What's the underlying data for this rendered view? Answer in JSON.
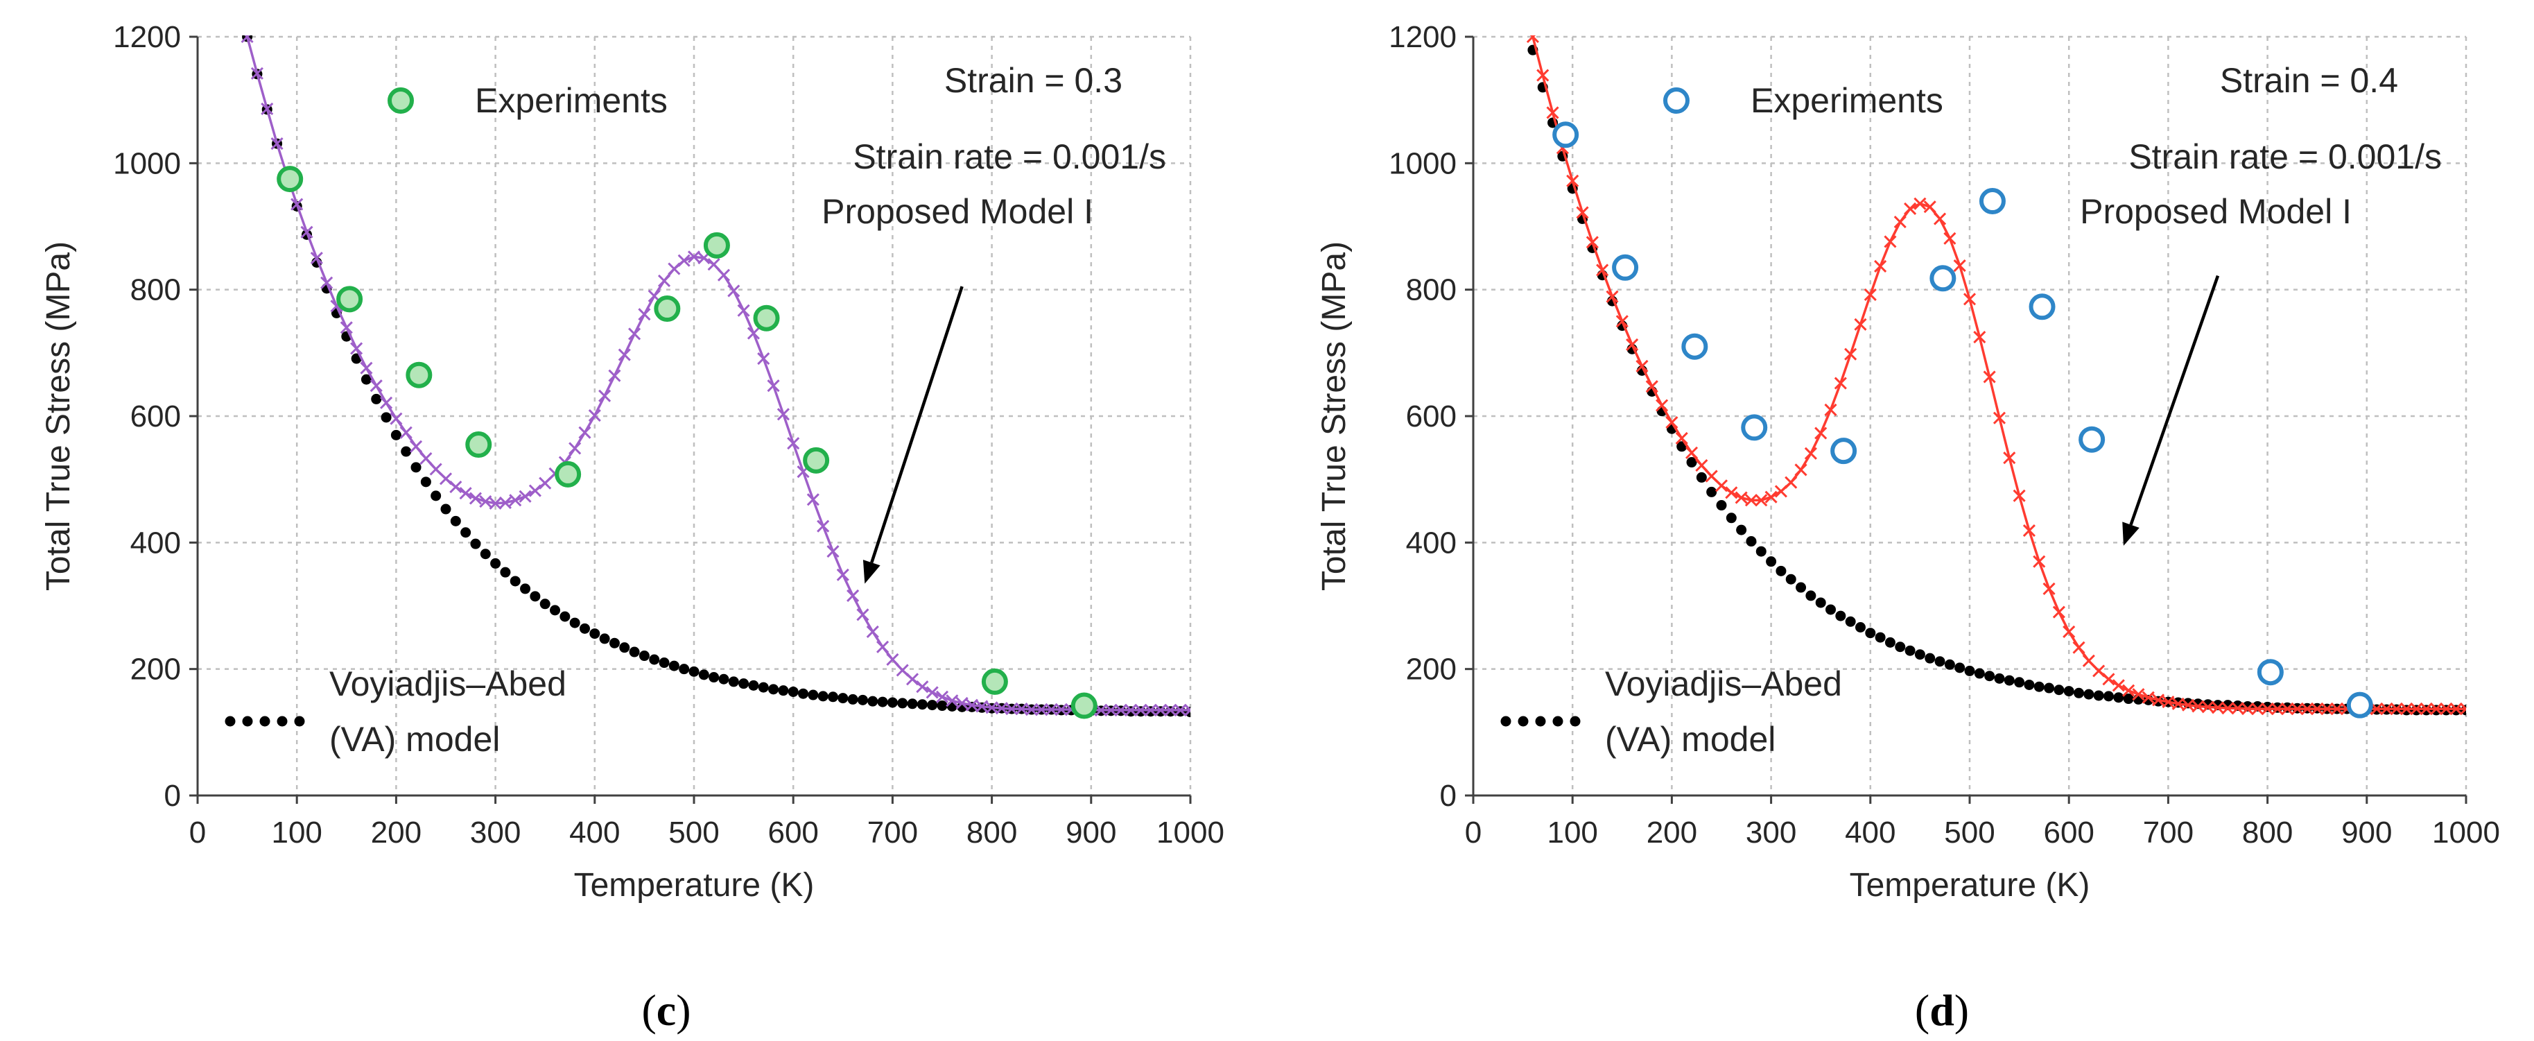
{
  "chart_data": [
    {
      "type": "scatter",
      "panel_label": "(c)",
      "panel_letter": "c",
      "xlabel": "Temperature (K)",
      "ylabel": "Total True Stress (MPa)",
      "xlim": [
        0,
        1000
      ],
      "ylim": [
        0,
        1200
      ],
      "xticks": [
        0,
        100,
        200,
        300,
        400,
        500,
        600,
        700,
        800,
        900,
        1000
      ],
      "yticks": [
        0,
        200,
        400,
        600,
        800,
        1000,
        1200
      ],
      "grid": true,
      "annotations": {
        "strain": "Strain = 0.3",
        "strain_rate": "Strain rate = 0.001/s",
        "model_label": "Proposed Model I",
        "arrow_tip": [
          672,
          335
        ],
        "arrow_tail": [
          770,
          805
        ]
      },
      "legend": {
        "experiments": "Experiments",
        "va_line1": "Voyiadjis–Abed",
        "va_line2": "(VA) model"
      },
      "colors": {
        "experiments_fill": "#b4e6b8",
        "experiments_edge": "#22b04b",
        "model": "#9e5fc9",
        "va": "#000000"
      },
      "series": [
        {
          "name": "Experiments",
          "x": [
            93,
            153,
            223,
            283,
            373,
            473,
            523,
            573,
            623,
            803,
            893
          ],
          "y": [
            975,
            785,
            665,
            555,
            508,
            770,
            870,
            755,
            530,
            180,
            142
          ]
        },
        {
          "name": "Proposed Model I",
          "x": [
            50,
            60,
            70,
            80,
            90,
            100,
            110,
            120,
            130,
            140,
            150,
            160,
            170,
            180,
            190,
            200,
            210,
            220,
            230,
            240,
            250,
            260,
            270,
            280,
            290,
            300,
            310,
            320,
            330,
            340,
            350,
            360,
            370,
            380,
            390,
            400,
            410,
            420,
            430,
            440,
            450,
            460,
            470,
            480,
            490,
            500,
            510,
            520,
            530,
            540,
            550,
            560,
            570,
            580,
            590,
            600,
            610,
            620,
            630,
            640,
            650,
            660,
            670,
            680,
            690,
            700,
            710,
            720,
            730,
            740,
            750,
            760,
            770,
            780,
            790,
            800,
            810,
            820,
            830,
            840,
            850,
            860,
            870,
            880,
            890,
            900,
            910,
            920,
            930,
            940,
            950,
            960,
            970,
            980,
            990,
            1000
          ],
          "y": [
            1200,
            1142,
            1086,
            1031,
            981,
            935,
            891,
            850,
            811,
            774,
            740,
            707,
            676,
            648,
            621,
            596,
            574,
            552,
            533,
            516,
            501,
            488,
            478,
            470,
            465,
            462,
            463,
            467,
            473,
            482,
            494,
            509,
            527,
            549,
            574,
            601,
            632,
            664,
            697,
            730,
            761,
            790,
            814,
            833,
            846,
            852,
            850,
            840,
            823,
            798,
            767,
            731,
            691,
            648,
            603,
            557,
            512,
            468,
            426,
            386,
            349,
            316,
            286,
            259,
            235,
            215,
            198,
            184,
            172,
            163,
            156,
            150,
            146,
            143,
            141,
            139,
            138,
            137,
            137,
            136,
            136,
            136,
            136,
            136,
            135,
            135,
            135,
            135,
            135,
            135,
            135,
            135,
            135,
            135,
            135,
            135
          ]
        },
        {
          "name": "Voyiadjis–Abed (VA) model",
          "x": [
            50,
            60,
            70,
            80,
            90,
            100,
            110,
            120,
            130,
            140,
            150,
            160,
            170,
            180,
            190,
            200,
            210,
            220,
            230,
            240,
            250,
            260,
            270,
            280,
            290,
            300,
            310,
            320,
            330,
            340,
            350,
            360,
            370,
            380,
            390,
            400,
            410,
            420,
            430,
            440,
            450,
            460,
            470,
            480,
            490,
            500,
            510,
            520,
            530,
            540,
            550,
            560,
            570,
            580,
            590,
            600,
            610,
            620,
            630,
            640,
            650,
            660,
            670,
            680,
            690,
            700,
            710,
            720,
            730,
            740,
            750,
            760,
            770,
            780,
            790,
            800,
            810,
            820,
            830,
            840,
            850,
            860,
            870,
            880,
            890,
            900,
            910,
            920,
            930,
            940,
            950,
            960,
            970,
            980,
            990,
            1000
          ],
          "y": [
            1200,
            1141,
            1085,
            1031,
            980,
            932,
            887,
            843,
            802,
            763,
            726,
            691,
            658,
            627,
            598,
            570,
            544,
            519,
            496,
            474,
            453,
            434,
            416,
            398,
            382,
            367,
            353,
            339,
            327,
            315,
            303,
            293,
            283,
            273,
            264,
            256,
            248,
            241,
            234,
            227,
            221,
            215,
            210,
            205,
            200,
            196,
            191,
            187,
            184,
            180,
            177,
            174,
            171,
            168,
            166,
            164,
            161,
            159,
            157,
            156,
            154,
            152,
            151,
            149,
            148,
            147,
            146,
            145,
            144,
            143,
            142,
            141,
            140,
            140,
            139,
            138,
            138,
            137,
            137,
            136,
            136,
            136,
            135,
            135,
            135,
            134,
            134,
            134,
            134,
            133,
            133,
            133,
            133,
            133,
            133,
            132
          ]
        }
      ]
    },
    {
      "type": "scatter",
      "panel_label": "(d)",
      "panel_letter": "d",
      "xlabel": "Temperature (K)",
      "ylabel": "Total True Stress (MPa)",
      "xlim": [
        0,
        1000
      ],
      "ylim": [
        0,
        1200
      ],
      "xticks": [
        0,
        100,
        200,
        300,
        400,
        500,
        600,
        700,
        800,
        900,
        1000
      ],
      "yticks": [
        0,
        200,
        400,
        600,
        800,
        1000,
        1200
      ],
      "grid": true,
      "annotations": {
        "strain": "Strain = 0.4",
        "strain_rate": "Strain rate = 0.001/s",
        "model_label": "Proposed Model I",
        "arrow_tip": [
          655,
          395
        ],
        "arrow_tail": [
          750,
          822
        ]
      },
      "legend": {
        "experiments": "Experiments",
        "va_line1": "Voyiadjis–Abed",
        "va_line2": "(VA) model"
      },
      "colors": {
        "experiments_fill": "#ffffff",
        "experiments_edge": "#2e86c8",
        "model": "#ff3b30",
        "va": "#000000"
      },
      "series": [
        {
          "name": "Experiments",
          "x": [
            93,
            153,
            223,
            283,
            373,
            473,
            523,
            573,
            623,
            803,
            893
          ],
          "y": [
            1045,
            835,
            710,
            582,
            545,
            818,
            940,
            773,
            563,
            195,
            143
          ]
        },
        {
          "name": "Proposed Model I",
          "x": [
            60,
            70,
            80,
            90,
            100,
            110,
            120,
            130,
            140,
            150,
            160,
            170,
            180,
            190,
            200,
            210,
            220,
            230,
            240,
            250,
            260,
            270,
            280,
            290,
            300,
            310,
            320,
            330,
            340,
            350,
            360,
            370,
            380,
            390,
            400,
            410,
            420,
            430,
            440,
            450,
            460,
            470,
            480,
            490,
            500,
            510,
            520,
            530,
            540,
            550,
            560,
            570,
            580,
            590,
            600,
            610,
            620,
            630,
            640,
            650,
            660,
            670,
            680,
            690,
            700,
            710,
            720,
            730,
            740,
            750,
            760,
            770,
            780,
            790,
            800,
            810,
            820,
            830,
            840,
            850,
            860,
            870,
            880,
            890,
            900,
            910,
            920,
            930,
            940,
            950,
            960,
            970,
            980,
            990,
            1000
          ],
          "y": [
            1200,
            1139,
            1080,
            1024,
            972,
            922,
            875,
            831,
            789,
            750,
            713,
            679,
            647,
            617,
            590,
            565,
            542,
            522,
            505,
            490,
            479,
            471,
            467,
            467,
            472,
            481,
            495,
            515,
            541,
            573,
            610,
            652,
            698,
            745,
            792,
            837,
            876,
            907,
            928,
            936,
            931,
            912,
            881,
            838,
            785,
            725,
            662,
            597,
            534,
            474,
            419,
            370,
            327,
            290,
            259,
            234,
            213,
            197,
            184,
            174,
            166,
            160,
            155,
            151,
            148,
            145,
            143,
            141,
            140,
            139,
            138,
            138,
            137,
            137,
            137,
            137,
            137,
            137,
            137,
            137,
            137,
            137,
            137,
            137,
            137,
            137,
            137,
            137,
            137,
            137,
            137,
            137,
            137,
            137,
            137
          ]
        },
        {
          "name": "Voyiadjis–Abed (VA) model",
          "x": [
            50,
            60,
            70,
            80,
            90,
            100,
            110,
            120,
            130,
            140,
            150,
            160,
            170,
            180,
            190,
            200,
            210,
            220,
            230,
            240,
            250,
            260,
            270,
            280,
            290,
            300,
            310,
            320,
            330,
            340,
            350,
            360,
            370,
            380,
            390,
            400,
            410,
            420,
            430,
            440,
            450,
            460,
            470,
            480,
            490,
            500,
            510,
            520,
            530,
            540,
            550,
            560,
            570,
            580,
            590,
            600,
            610,
            620,
            630,
            640,
            650,
            660,
            670,
            680,
            690,
            700,
            710,
            720,
            730,
            740,
            750,
            760,
            770,
            780,
            790,
            800,
            810,
            820,
            830,
            840,
            850,
            860,
            870,
            880,
            890,
            900,
            910,
            920,
            930,
            940,
            950,
            960,
            970,
            980,
            990,
            1000
          ],
          "y": [
            1240,
            1179,
            1120,
            1064,
            1011,
            960,
            912,
            866,
            823,
            782,
            743,
            706,
            672,
            639,
            608,
            580,
            552,
            527,
            503,
            480,
            459,
            439,
            420,
            402,
            386,
            370,
            355,
            342,
            329,
            316,
            305,
            294,
            284,
            275,
            266,
            257,
            250,
            242,
            235,
            229,
            223,
            217,
            212,
            207,
            202,
            197,
            193,
            189,
            185,
            182,
            179,
            175,
            172,
            170,
            167,
            165,
            162,
            160,
            158,
            157,
            155,
            153,
            152,
            151,
            149,
            148,
            147,
            146,
            145,
            144,
            143,
            143,
            142,
            141,
            141,
            140,
            139,
            139,
            138,
            138,
            138,
            137,
            137,
            137,
            136,
            136,
            136,
            136,
            136,
            135,
            135,
            135,
            135,
            135,
            135,
            135
          ]
        }
      ]
    }
  ]
}
